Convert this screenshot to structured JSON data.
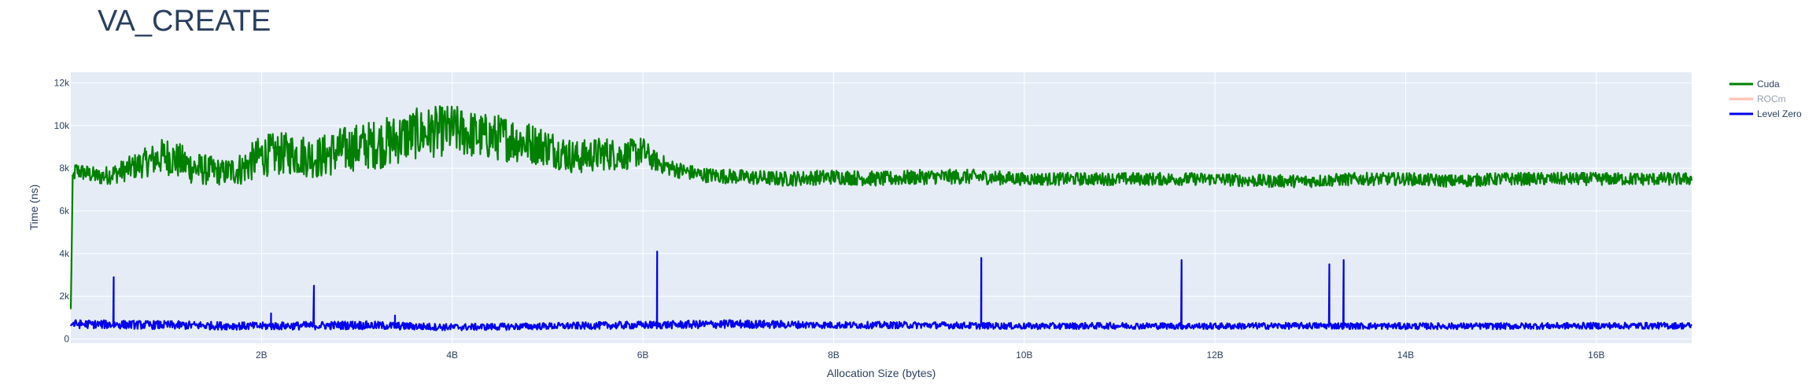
{
  "chart_data": {
    "type": "line",
    "title": "VA_CREATE",
    "xlabel": "Allocation Size (bytes)",
    "ylabel": "Time (ns)",
    "x_unit": "bytes",
    "xlim": [
      0,
      17
    ],
    "ylim": [
      -200,
      12500
    ],
    "x_ticks": [
      {
        "value": 2,
        "label": "2B"
      },
      {
        "value": 4,
        "label": "4B"
      },
      {
        "value": 6,
        "label": "6B"
      },
      {
        "value": 8,
        "label": "8B"
      },
      {
        "value": 10,
        "label": "10B"
      },
      {
        "value": 12,
        "label": "12B"
      },
      {
        "value": 14,
        "label": "14B"
      },
      {
        "value": 16,
        "label": "16B"
      }
    ],
    "y_ticks": [
      {
        "value": 0,
        "label": "0"
      },
      {
        "value": 2000,
        "label": "2k"
      },
      {
        "value": 4000,
        "label": "4k"
      },
      {
        "value": 6000,
        "label": "6k"
      },
      {
        "value": 8000,
        "label": "8k"
      },
      {
        "value": 10000,
        "label": "10k"
      },
      {
        "value": 12000,
        "label": "12k"
      }
    ],
    "grid": true,
    "legend_position": "top-right",
    "series": [
      {
        "name": "Cuda",
        "color": "#008000",
        "visible": true,
        "x": [
          0,
          0.02,
          0.05,
          0.3,
          0.5,
          0.8,
          1.0,
          1.3,
          1.6,
          1.8,
          2.0,
          2.3,
          2.6,
          2.8,
          3.0,
          3.3,
          3.6,
          3.8,
          4.0,
          4.3,
          4.6,
          4.8,
          5.0,
          5.3,
          5.6,
          5.8,
          6.0,
          6.1,
          6.3,
          6.6,
          7.0,
          7.5,
          8.0,
          8.5,
          9.0,
          9.5,
          10.0,
          10.5,
          11.0,
          11.5,
          12.0,
          12.5,
          13.0,
          13.5,
          14.0,
          14.5,
          15.0,
          15.5,
          16.0,
          16.5,
          17.0
        ],
        "y": [
          1400,
          7500,
          7900,
          7600,
          7800,
          8300,
          8600,
          8000,
          7800,
          8000,
          8600,
          8700,
          8500,
          8800,
          9000,
          9200,
          9600,
          9700,
          9800,
          9500,
          9400,
          9200,
          9000,
          8500,
          8700,
          8600,
          8800,
          8400,
          8000,
          7700,
          7600,
          7500,
          7600,
          7500,
          7600,
          7600,
          7500,
          7500,
          7500,
          7500,
          7500,
          7400,
          7400,
          7500,
          7500,
          7400,
          7500,
          7500,
          7500,
          7500,
          7500
        ],
        "noise": [
          0,
          300,
          400,
          400,
          500,
          700,
          900,
          800,
          600,
          800,
          1000,
          1000,
          1000,
          1100,
          1100,
          1200,
          1200,
          1200,
          1200,
          1100,
          1100,
          1000,
          900,
          800,
          800,
          700,
          700,
          500,
          400,
          350,
          350,
          350,
          350,
          350,
          350,
          350,
          300,
          300,
          300,
          300,
          300,
          300,
          300,
          300,
          300,
          300,
          300,
          300,
          300,
          300,
          300
        ]
      },
      {
        "name": "ROCm",
        "color": "#ff8166",
        "visible": false,
        "x": [],
        "y": []
      },
      {
        "name": "Level Zero",
        "color": "#0000ee",
        "visible": true,
        "x": [
          0,
          1,
          2,
          3,
          4,
          5,
          6,
          7,
          8,
          9,
          10,
          11,
          12,
          13,
          14,
          15,
          16,
          17
        ],
        "y": [
          700,
          650,
          600,
          650,
          550,
          600,
          650,
          700,
          650,
          650,
          600,
          620,
          600,
          620,
          600,
          600,
          620,
          620
        ],
        "noise": [
          200,
          200,
          180,
          200,
          160,
          160,
          180,
          200,
          160,
          160,
          150,
          150,
          150,
          150,
          150,
          150,
          150,
          150
        ],
        "spikes": [
          {
            "x": 0.45,
            "y": 2900
          },
          {
            "x": 2.1,
            "y": 1200
          },
          {
            "x": 2.55,
            "y": 2500
          },
          {
            "x": 3.4,
            "y": 1100
          },
          {
            "x": 6.15,
            "y": 4100
          },
          {
            "x": 9.55,
            "y": 3800
          },
          {
            "x": 11.65,
            "y": 3700
          },
          {
            "x": 13.2,
            "y": 3500
          },
          {
            "x": 13.35,
            "y": 3700
          }
        ]
      }
    ]
  }
}
